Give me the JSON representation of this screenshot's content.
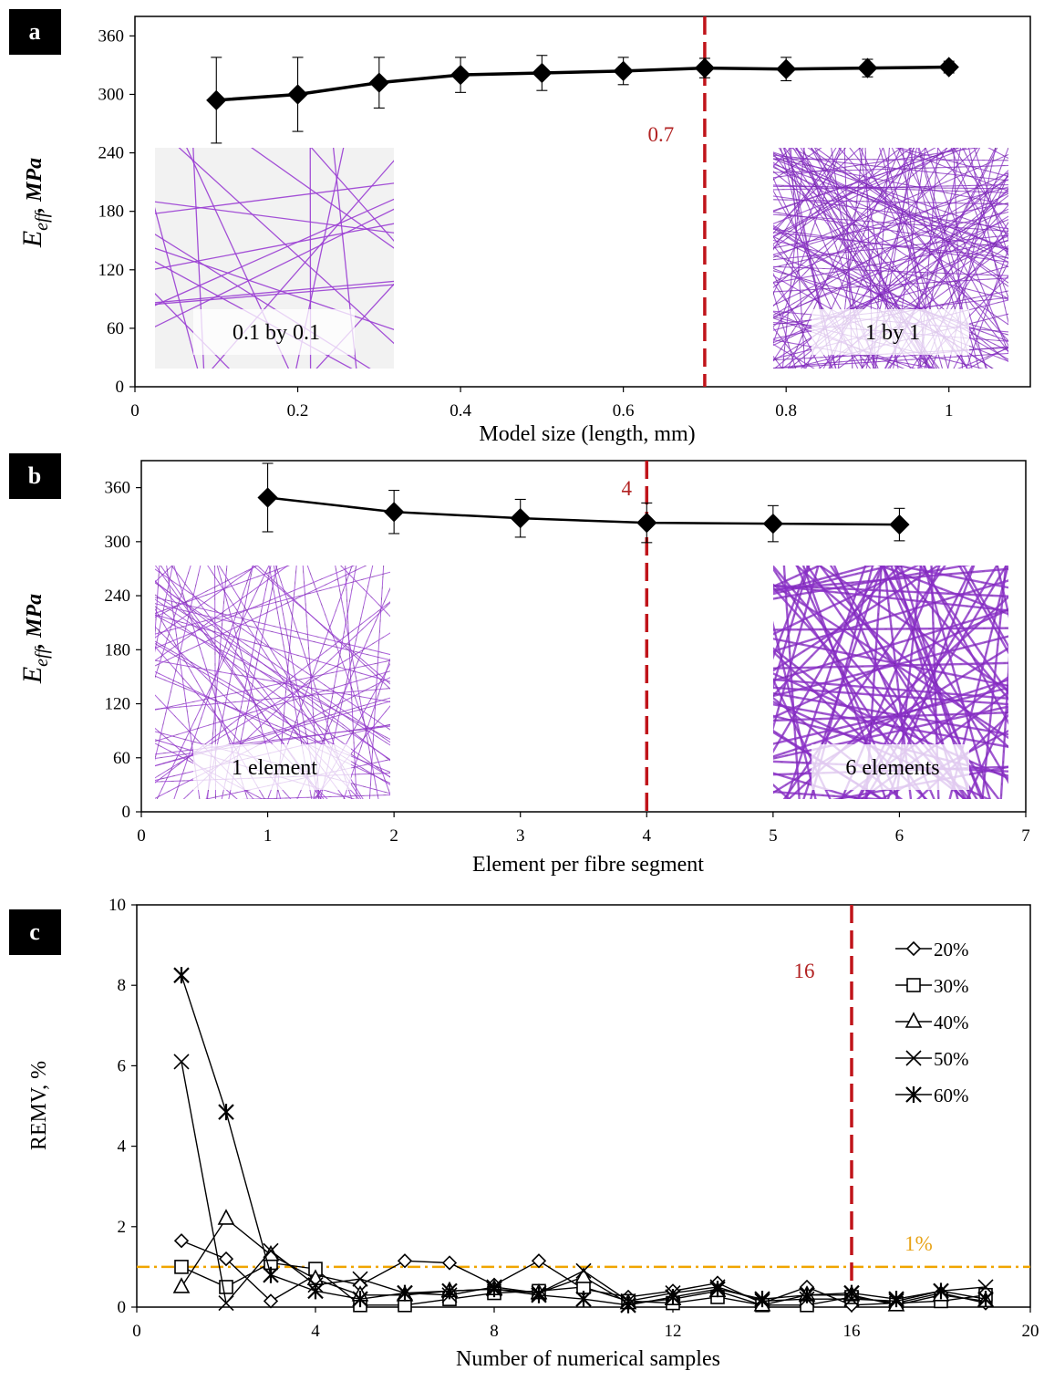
{
  "colors": {
    "threshold": "#c0141a",
    "one_percent": "#f0a500",
    "mesh_light": "#9b3fd4",
    "mesh_dense": "#8a2fc8"
  },
  "chart_data": [
    {
      "type": "line",
      "panel": "a",
      "ylabel_main": "E",
      "ylabel_sub": "eff",
      "ylabel_unit": ", MPa",
      "xlabel": "Model size (length, mm)",
      "xlim": [
        0,
        1.1
      ],
      "ylim": [
        0,
        380
      ],
      "xticks": [
        0,
        0.2,
        0.4,
        0.6,
        0.8,
        1
      ],
      "xtick_labels": [
        "0",
        "0.2",
        "0.4",
        "0.6",
        "0.8",
        "1"
      ],
      "yticks": [
        0,
        60,
        120,
        180,
        240,
        300,
        360
      ],
      "ytick_labels": [
        "0",
        "60",
        "120",
        "180",
        "240",
        "300",
        "360"
      ],
      "series": [
        {
          "marker": "diamond",
          "x": [
            0.1,
            0.2,
            0.3,
            0.4,
            0.5,
            0.6,
            0.7,
            0.8,
            0.9,
            1.0
          ],
          "y": [
            294,
            300,
            312,
            320,
            322,
            324,
            327,
            326,
            327,
            328
          ],
          "err": [
            44,
            38,
            26,
            18,
            18,
            14,
            10,
            12,
            9,
            6
          ]
        }
      ],
      "threshold": {
        "x": 0.7,
        "label": "0.7"
      },
      "insets": [
        {
          "label": "0.1 by 0.1",
          "style": "sparse"
        },
        {
          "label": "1 by 1",
          "style": "dense"
        }
      ]
    },
    {
      "type": "line",
      "panel": "b",
      "ylabel_main": "E",
      "ylabel_sub": "eff",
      "ylabel_unit": ", MPa",
      "xlabel": "Element per fibre segment",
      "xlim": [
        0,
        7
      ],
      "ylim": [
        0,
        390
      ],
      "xticks": [
        0,
        1,
        2,
        3,
        4,
        5,
        6,
        7
      ],
      "xtick_labels": [
        "0",
        "1",
        "2",
        "3",
        "4",
        "5",
        "6",
        "7"
      ],
      "yticks": [
        0,
        60,
        120,
        180,
        240,
        300,
        360
      ],
      "ytick_labels": [
        "0",
        "60",
        "120",
        "180",
        "240",
        "300",
        "360"
      ],
      "series": [
        {
          "marker": "diamond",
          "x": [
            1,
            2,
            3,
            4,
            5,
            6
          ],
          "y": [
            349,
            333,
            326,
            321,
            320,
            319
          ],
          "err": [
            38,
            24,
            21,
            22,
            20,
            18
          ]
        }
      ],
      "threshold": {
        "x": 4,
        "label": "4"
      },
      "insets": [
        {
          "label": "1 element",
          "style": "medium"
        },
        {
          "label": "6 elements",
          "style": "thick"
        }
      ]
    },
    {
      "type": "line",
      "panel": "c",
      "ylabel": "REMV, %",
      "xlabel": "Number of numerical samples",
      "xlim": [
        0,
        20
      ],
      "ylim": [
        0,
        10
      ],
      "xticks": [
        0,
        4,
        8,
        12,
        16,
        20
      ],
      "xtick_labels": [
        "0",
        "4",
        "8",
        "12",
        "16",
        "20"
      ],
      "yticks": [
        0,
        2,
        4,
        6,
        8,
        10
      ],
      "ytick_labels": [
        "0",
        "2",
        "4",
        "6",
        "8",
        "10"
      ],
      "threshold": {
        "x": 16,
        "label": "16"
      },
      "reference": {
        "y": 1,
        "label": "1%"
      },
      "legend_position": "top-right",
      "x": [
        1,
        2,
        3,
        4,
        5,
        6,
        7,
        8,
        9,
        10,
        11,
        12,
        13,
        14,
        15,
        16,
        17,
        18,
        19
      ],
      "series": [
        {
          "name": "20%",
          "marker": "diamond",
          "values": [
            1.65,
            1.2,
            0.15,
            0.8,
            0.55,
            1.15,
            1.1,
            0.55,
            1.15,
            0.45,
            0.25,
            0.4,
            0.6,
            0.1,
            0.5,
            0.05,
            0.1,
            0.35,
            0.1
          ]
        },
        {
          "name": "30%",
          "marker": "square",
          "values": [
            1.0,
            0.5,
            1.1,
            0.95,
            0.05,
            0.05,
            0.2,
            0.35,
            0.4,
            0.5,
            0.15,
            0.1,
            0.25,
            0.05,
            0.05,
            0.25,
            0.1,
            0.15,
            0.3
          ]
        },
        {
          "name": "40%",
          "marker": "triangle",
          "values": [
            0.5,
            2.2,
            1.3,
            0.7,
            0.3,
            0.3,
            0.4,
            0.45,
            0.35,
            0.75,
            0.1,
            0.2,
            0.4,
            0.05,
            0.3,
            0.3,
            0.05,
            0.3,
            0.15
          ]
        },
        {
          "name": "50%",
          "marker": "x",
          "values": [
            6.1,
            0.1,
            1.4,
            0.55,
            0.7,
            0.35,
            0.3,
            0.5,
            0.35,
            0.9,
            0.15,
            0.35,
            0.5,
            0.15,
            0.2,
            0.2,
            0.15,
            0.4,
            0.5
          ]
        },
        {
          "name": "60%",
          "marker": "asterisk",
          "values": [
            8.25,
            4.85,
            0.8,
            0.4,
            0.2,
            0.35,
            0.4,
            0.45,
            0.3,
            0.2,
            0.05,
            0.25,
            0.45,
            0.2,
            0.3,
            0.35,
            0.2,
            0.4,
            0.2
          ]
        }
      ]
    }
  ]
}
